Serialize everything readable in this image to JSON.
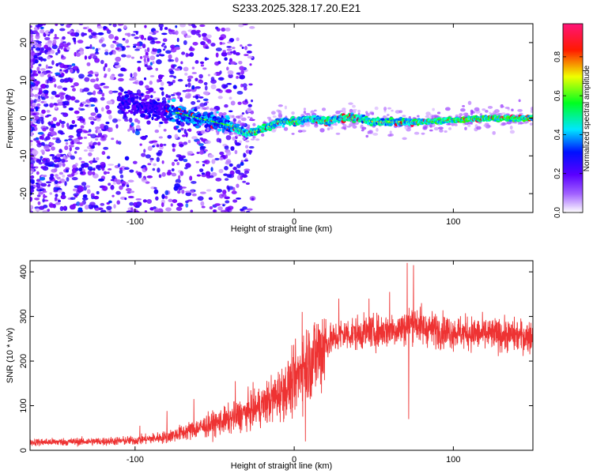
{
  "figure": {
    "title": "S233.2025.328.17.20.E21"
  },
  "chart_data": [
    {
      "type": "heatmap",
      "xlabel": "Height of straight line (km)",
      "ylabel": "Frequency (Hz)",
      "xlim": [
        -166,
        150
      ],
      "ylim": [
        -25,
        25
      ],
      "xticks": [
        -100,
        0,
        100
      ],
      "xtick_labels": [
        "-100",
        "0",
        "100"
      ],
      "yticks": [
        -20,
        -10,
        0,
        10,
        20
      ],
      "ytick_labels": [
        "-20",
        "-10",
        "0",
        "10",
        "20"
      ],
      "colorbar": {
        "label": "Normalized spectral amplitude",
        "ticks": [
          0.0,
          0.2,
          0.4,
          0.6,
          0.8
        ],
        "tick_labels": [
          "0.0",
          "0.2",
          "0.4",
          "0.6",
          "0.8"
        ],
        "range": [
          0,
          0.97
        ],
        "colormap": [
          "#ffffff",
          "#7a00ff",
          "#0000ff",
          "#00ffff",
          "#00ff00",
          "#ffff00",
          "#ff0000",
          "#ff0080"
        ]
      },
      "ridge": {
        "x": [
          -100,
          -90,
          -80,
          -70,
          -60,
          -50,
          -40,
          -30,
          -20,
          -10,
          0,
          10,
          20,
          30,
          40,
          50,
          60,
          70,
          80,
          100,
          120,
          150
        ],
        "y": [
          4,
          3,
          2,
          1,
          0,
          -1,
          -2,
          -4,
          -3,
          -1,
          -1,
          0,
          -1,
          0,
          0,
          -1,
          -1,
          -1,
          -1,
          -0.5,
          0,
          0
        ]
      },
      "grid": false
    },
    {
      "type": "line",
      "xlabel": "Height of straight line (km)",
      "ylabel": "SNR (10 * v/v)",
      "xlim": [
        -166,
        150
      ],
      "ylim": [
        0,
        425
      ],
      "xticks": [
        -100,
        0,
        100
      ],
      "xtick_labels": [
        "-100",
        "0",
        "100"
      ],
      "yticks": [
        0,
        100,
        200,
        300,
        400
      ],
      "ytick_labels": [
        "0",
        "100",
        "200",
        "300",
        "400"
      ],
      "color": "#ee3333",
      "grid": false,
      "envelope": {
        "x": [
          -166,
          -120,
          -100,
          -80,
          -60,
          -40,
          -20,
          0,
          5,
          10,
          20,
          30,
          50,
          60,
          70,
          75,
          80,
          100,
          120,
          150
        ],
        "y": [
          18,
          20,
          22,
          30,
          50,
          70,
          100,
          150,
          190,
          200,
          240,
          260,
          265,
          270,
          275,
          290,
          275,
          265,
          260,
          255
        ]
      },
      "spikes": [
        {
          "x": -97,
          "y": 55
        },
        {
          "x": -80,
          "y": 88
        },
        {
          "x": -63,
          "y": 115
        },
        {
          "x": -37,
          "y": 155
        },
        {
          "x": 5,
          "y": 310
        },
        {
          "x": 7,
          "y": 20
        },
        {
          "x": 28,
          "y": 340
        },
        {
          "x": 47,
          "y": 340
        },
        {
          "x": 60,
          "y": 355
        },
        {
          "x": 71,
          "y": 420
        },
        {
          "x": 72,
          "y": 70
        },
        {
          "x": 75,
          "y": 415
        },
        {
          "x": 80,
          "y": 330
        }
      ]
    }
  ]
}
